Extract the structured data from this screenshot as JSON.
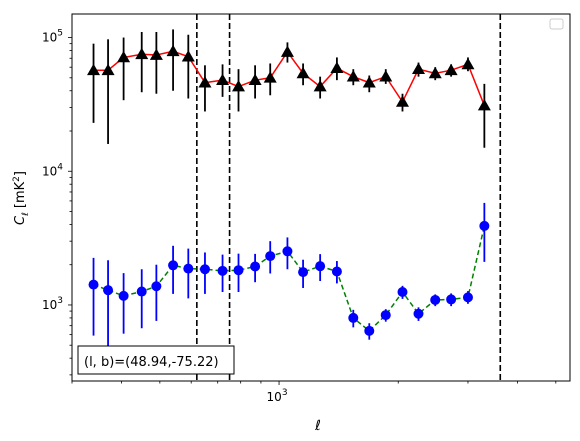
{
  "chart_data": {
    "type": "scatter",
    "xscale": "log",
    "yscale": "log",
    "xlim": [
      300,
      5430
    ],
    "ylim": [
      270,
      150000
    ],
    "xlabel": "ℓ",
    "ylabel": "C_ℓ [mK²]",
    "x_tick_labels": [
      {
        "value": 1000,
        "base": "10",
        "exp": "3"
      }
    ],
    "y_tick_labels": [
      {
        "value": 1000,
        "base": "10",
        "exp": "3"
      },
      {
        "value": 10000,
        "base": "10",
        "exp": "4"
      },
      {
        "value": 100000,
        "base": "10",
        "exp": "5"
      }
    ],
    "annotation": "(l, b)=(48.94,-75.22)",
    "legend": {
      "placement": "top-right",
      "entries": []
    },
    "vlines": [
      620,
      750,
      3620
    ],
    "series": [
      {
        "marker": "triangle",
        "marker_color": "#000000",
        "errorbar_color": "#000000",
        "line_color": "#ff0000",
        "line_style": "solid",
        "points": [
          {
            "x": 340,
            "y": 57000,
            "lo": 23000,
            "hi": 90000
          },
          {
            "x": 370,
            "y": 57000,
            "lo": 16000,
            "hi": 97000
          },
          {
            "x": 405,
            "y": 71000,
            "lo": 34000,
            "hi": 100000
          },
          {
            "x": 450,
            "y": 75000,
            "lo": 39000,
            "hi": 110000
          },
          {
            "x": 490,
            "y": 74000,
            "lo": 38000,
            "hi": 110000
          },
          {
            "x": 540,
            "y": 79000,
            "lo": 40000,
            "hi": 115000
          },
          {
            "x": 590,
            "y": 72000,
            "lo": 35000,
            "hi": 105000
          },
          {
            "x": 650,
            "y": 46000,
            "lo": 28000,
            "hi": 62000
          },
          {
            "x": 720,
            "y": 48000,
            "lo": 36000,
            "hi": 63000
          },
          {
            "x": 790,
            "y": 43000,
            "lo": 28000,
            "hi": 58000
          },
          {
            "x": 870,
            "y": 48000,
            "lo": 35000,
            "hi": 62000
          },
          {
            "x": 950,
            "y": 50000,
            "lo": 37000,
            "hi": 64000
          },
          {
            "x": 1050,
            "y": 78000,
            "lo": 65000,
            "hi": 92000
          },
          {
            "x": 1150,
            "y": 54000,
            "lo": 44000,
            "hi": 64000
          },
          {
            "x": 1270,
            "y": 43000,
            "lo": 35000,
            "hi": 51000
          },
          {
            "x": 1400,
            "y": 59000,
            "lo": 48000,
            "hi": 71000
          },
          {
            "x": 1540,
            "y": 51000,
            "lo": 44000,
            "hi": 58000
          },
          {
            "x": 1690,
            "y": 46000,
            "lo": 39000,
            "hi": 52000
          },
          {
            "x": 1860,
            "y": 51000,
            "lo": 45000,
            "hi": 58000
          },
          {
            "x": 2050,
            "y": 33000,
            "lo": 28000,
            "hi": 38000
          },
          {
            "x": 2250,
            "y": 58000,
            "lo": 51000,
            "hi": 65000
          },
          {
            "x": 2480,
            "y": 54000,
            "lo": 48000,
            "hi": 60000
          },
          {
            "x": 2720,
            "y": 57000,
            "lo": 51000,
            "hi": 63000
          },
          {
            "x": 3000,
            "y": 63000,
            "lo": 56000,
            "hi": 71000
          },
          {
            "x": 3300,
            "y": 31000,
            "lo": 15000,
            "hi": 45000
          }
        ]
      },
      {
        "marker": "circle",
        "marker_color": "#0000ff",
        "errorbar_color": "#0000ff",
        "line_color": "#008000",
        "line_style": "dashed",
        "points": [
          {
            "x": 340,
            "y": 1420,
            "lo": 590,
            "hi": 2250
          },
          {
            "x": 370,
            "y": 1290,
            "lo": 470,
            "hi": 2160
          },
          {
            "x": 405,
            "y": 1170,
            "lo": 610,
            "hi": 1730
          },
          {
            "x": 450,
            "y": 1260,
            "lo": 670,
            "hi": 1850
          },
          {
            "x": 490,
            "y": 1380,
            "lo": 760,
            "hi": 2000
          },
          {
            "x": 540,
            "y": 1980,
            "lo": 1210,
            "hi": 2770
          },
          {
            "x": 590,
            "y": 1870,
            "lo": 1120,
            "hi": 2640
          },
          {
            "x": 650,
            "y": 1850,
            "lo": 1210,
            "hi": 2470
          },
          {
            "x": 720,
            "y": 1800,
            "lo": 1250,
            "hi": 2380
          },
          {
            "x": 790,
            "y": 1820,
            "lo": 1250,
            "hi": 2420
          },
          {
            "x": 870,
            "y": 1940,
            "lo": 1480,
            "hi": 2410
          },
          {
            "x": 950,
            "y": 2320,
            "lo": 1720,
            "hi": 3000
          },
          {
            "x": 1050,
            "y": 2520,
            "lo": 1850,
            "hi": 3200
          },
          {
            "x": 1150,
            "y": 1760,
            "lo": 1340,
            "hi": 2180
          },
          {
            "x": 1270,
            "y": 1950,
            "lo": 1510,
            "hi": 2400
          },
          {
            "x": 1400,
            "y": 1780,
            "lo": 1450,
            "hi": 2130
          },
          {
            "x": 1540,
            "y": 800,
            "lo": 680,
            "hi": 920
          },
          {
            "x": 1690,
            "y": 640,
            "lo": 550,
            "hi": 730
          },
          {
            "x": 1860,
            "y": 840,
            "lo": 750,
            "hi": 930
          },
          {
            "x": 2050,
            "y": 1250,
            "lo": 1110,
            "hi": 1390
          },
          {
            "x": 2250,
            "y": 860,
            "lo": 760,
            "hi": 960
          },
          {
            "x": 2480,
            "y": 1090,
            "lo": 980,
            "hi": 1200
          },
          {
            "x": 2720,
            "y": 1100,
            "lo": 980,
            "hi": 1220
          },
          {
            "x": 3000,
            "y": 1140,
            "lo": 1020,
            "hi": 1270
          },
          {
            "x": 3300,
            "y": 3900,
            "lo": 2100,
            "hi": 5800
          }
        ]
      }
    ]
  }
}
